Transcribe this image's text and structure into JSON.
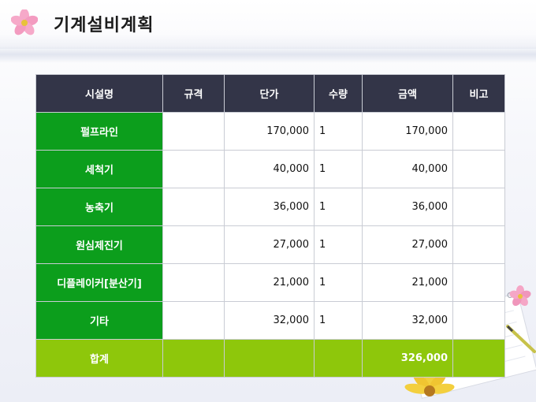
{
  "page": {
    "title": "기계설비계획"
  },
  "table": {
    "headers": [
      "시설명",
      "규격",
      "단가",
      "수량",
      "금액",
      "비고"
    ],
    "rows": [
      {
        "name": "펄프라인",
        "spec": "",
        "unit_price": "170,000",
        "quantity": "1",
        "amount": "170,000",
        "note": ""
      },
      {
        "name": "세척기",
        "spec": "",
        "unit_price": "40,000",
        "quantity": "1",
        "amount": "40,000",
        "note": ""
      },
      {
        "name": "농축기",
        "spec": "",
        "unit_price": "36,000",
        "quantity": "1",
        "amount": "36,000",
        "note": ""
      },
      {
        "name": "원심제진기",
        "spec": "",
        "unit_price": "27,000",
        "quantity": "1",
        "amount": "27,000",
        "note": ""
      },
      {
        "name": "디플레이커[분산기]",
        "spec": "",
        "unit_price": "21,000",
        "quantity": "1",
        "amount": "21,000",
        "note": ""
      },
      {
        "name": "기타",
        "spec": "",
        "unit_price": "32,000",
        "quantity": "1",
        "amount": "32,000",
        "note": ""
      }
    ],
    "total": {
      "label": "합계",
      "amount": "326,000"
    }
  },
  "colors": {
    "header_bg": "#333548",
    "name_cell_bg": "#0c9e1c",
    "total_row_bg": "#8ec70b"
  },
  "icons": [
    "pink-flower-icon",
    "notebook-decoration",
    "yellow-flower-decoration",
    "pencil-decoration"
  ]
}
